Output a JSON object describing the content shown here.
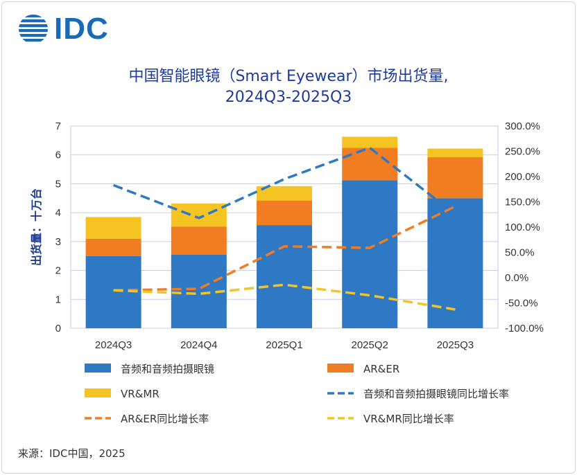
{
  "brand": {
    "name": "IDC"
  },
  "title_line1": "中国智能眼镜（Smart Eyewear）市场出货量,",
  "title_line2": "2024Q3-2025Q3",
  "source": "来源：IDC中国，2025",
  "colors": {
    "audio": "#2e78c4",
    "ar_er": "#f17d23",
    "vr_mr": "#f5c423",
    "grid": "#c9c9e8",
    "title": "#1f3b99",
    "logo": "#1a6bb7"
  },
  "chart_data": {
    "type": "bar",
    "stacked": true,
    "categories": [
      "2024Q3",
      "2024Q4",
      "2025Q1",
      "2025Q2",
      "2025Q3"
    ],
    "ylabel": "出货量：十万台",
    "ylim": [
      0,
      7
    ],
    "yticks": [
      "0",
      "1",
      "2",
      "3",
      "4",
      "5",
      "6",
      "7"
    ],
    "y2lim": [
      -100,
      300
    ],
    "y2ticks": [
      "-100.0%",
      "-50.0%",
      "0.0%",
      "50.0%",
      "100.0%",
      "150.0%",
      "200.0%",
      "250.0%",
      "300.0%"
    ],
    "series": [
      {
        "name": "音频和音频拍摄眼镜",
        "kind": "bar",
        "color": "#2e78c4",
        "values": [
          2.5,
          2.55,
          3.57,
          5.12,
          4.5
        ]
      },
      {
        "name": "AR&ER",
        "kind": "bar",
        "color": "#f17d23",
        "values": [
          0.6,
          0.97,
          0.85,
          1.13,
          1.42
        ]
      },
      {
        "name": "VR&MR",
        "kind": "bar",
        "color": "#f5c423",
        "values": [
          0.75,
          0.8,
          0.5,
          0.38,
          0.3
        ]
      },
      {
        "name": "音频和音频拍摄眼镜同比增长率",
        "kind": "line",
        "axis": "right",
        "color": "#2e78c4",
        "values": [
          183,
          118,
          195,
          257,
          125
        ]
      },
      {
        "name": "AR&ER同比增长率",
        "kind": "line",
        "axis": "right",
        "color": "#f17d23",
        "values": [
          -25,
          -22,
          62,
          59,
          141
        ]
      },
      {
        "name": "VR&MR同比增长率",
        "kind": "line",
        "axis": "right",
        "color": "#f5c423",
        "values": [
          -25,
          -32,
          -14,
          -35,
          -63
        ]
      }
    ],
    "legend_position": "bottom",
    "grid": true
  }
}
